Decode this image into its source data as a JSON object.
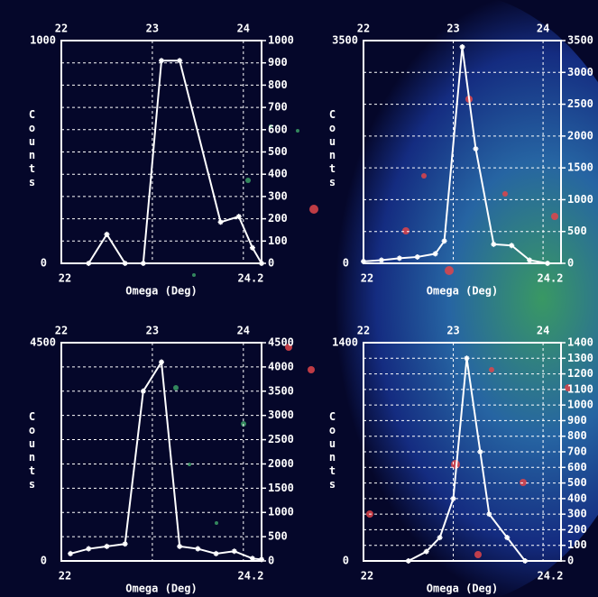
{
  "chart_data": [
    {
      "type": "line",
      "x_label": "Omega (Deg)",
      "y_label": "Counts",
      "color": "#ffffff",
      "grid": true,
      "x": [
        22.3,
        22.5,
        22.7,
        22.9,
        23.1,
        23.3,
        23.75,
        23.95,
        24.1,
        24.2
      ],
      "values": [
        0,
        130,
        0,
        0,
        910,
        910,
        185,
        210,
        70,
        0
      ],
      "xlim": [
        22,
        24.2
      ],
      "xticks": [
        22,
        23,
        24
      ],
      "ylim": [
        0,
        1000
      ],
      "yticks": [
        0,
        100,
        200,
        300,
        400,
        500,
        600,
        700,
        800,
        900,
        1000
      ]
    },
    {
      "type": "line",
      "x_label": "Omega (Deg)",
      "y_label": "Counts",
      "color": "#ffffff",
      "grid": true,
      "x": [
        22.0,
        22.2,
        22.4,
        22.6,
        22.8,
        22.9,
        23.1,
        23.25,
        23.45,
        23.65,
        23.85,
        24.05
      ],
      "values": [
        30,
        50,
        80,
        100,
        150,
        350,
        3400,
        1800,
        300,
        280,
        50,
        0
      ],
      "xlim": [
        22,
        24.2
      ],
      "xticks": [
        22,
        23,
        24
      ],
      "ylim": [
        0,
        3500
      ],
      "yticks": [
        0,
        500,
        1000,
        1500,
        2000,
        2500,
        3000,
        3500
      ]
    },
    {
      "type": "line",
      "x_label": "Omega (Deg)",
      "y_label": "Counts",
      "color": "#ffffff",
      "grid": true,
      "x": [
        22.1,
        22.3,
        22.5,
        22.7,
        22.9,
        23.1,
        23.3,
        23.5,
        23.7,
        23.9,
        24.1,
        24.2
      ],
      "values": [
        150,
        250,
        300,
        350,
        3500,
        4100,
        300,
        250,
        150,
        200,
        50,
        30
      ],
      "xlim": [
        22,
        24.2
      ],
      "xticks": [
        22,
        23,
        24
      ],
      "ylim": [
        0,
        4500
      ],
      "yticks": [
        0,
        500,
        1000,
        1500,
        2000,
        2500,
        3000,
        3500,
        4000,
        4500
      ]
    },
    {
      "type": "line",
      "x_label": "Omega (Deg)",
      "y_label": "Counts",
      "color": "#ffffff",
      "grid": true,
      "x": [
        22.5,
        22.7,
        22.85,
        23.0,
        23.15,
        23.3,
        23.4,
        23.6,
        23.8
      ],
      "values": [
        0,
        60,
        150,
        400,
        1300,
        700,
        300,
        150,
        0
      ],
      "xlim": [
        22,
        24.2
      ],
      "xticks": [
        22,
        23,
        24
      ],
      "ylim": [
        0,
        1400
      ],
      "yticks": [
        0,
        100,
        200,
        300,
        400,
        500,
        600,
        700,
        800,
        900,
        1000,
        1100,
        1200,
        1300,
        1400
      ]
    }
  ]
}
